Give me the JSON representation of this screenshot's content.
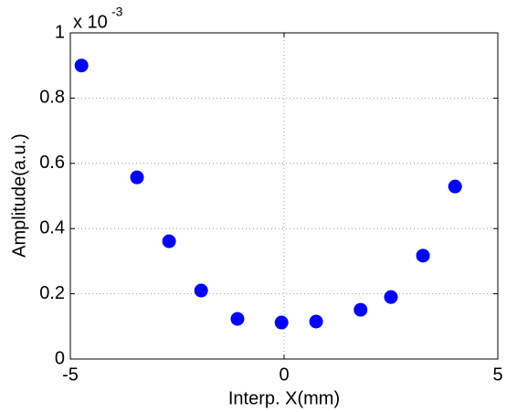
{
  "chart_data": {
    "type": "scatter",
    "xlabel": "Interp. X(mm)",
    "ylabel": "Amplitude(a.u.)",
    "y_exponent_label": "x 10",
    "y_exponent_power": "-3",
    "x": [
      -4.74,
      -3.44,
      -2.69,
      -1.94,
      -1.09,
      -0.06,
      0.75,
      1.79,
      2.5,
      3.25,
      4.0
    ],
    "series": [
      {
        "color": "#0000ff",
        "values": [
          0.9,
          0.557,
          0.361,
          0.21,
          0.123,
          0.112,
          0.115,
          0.151,
          0.19,
          0.317,
          0.529
        ]
      }
    ],
    "xlim": [
      -5,
      5
    ],
    "xticks": [
      -5,
      0,
      5
    ],
    "ylim": [
      0,
      1
    ],
    "yticks": [
      0,
      0.2,
      0.4,
      0.6,
      0.8,
      1
    ],
    "grid": true
  }
}
